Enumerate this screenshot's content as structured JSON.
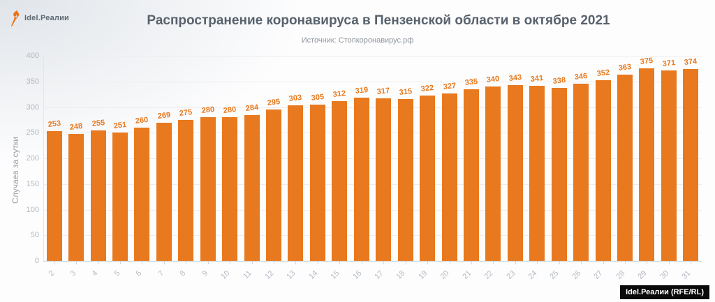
{
  "header": {
    "logo_text": "Idel.Реалии",
    "title": "Распространение коронавируса в Пензенской области в октябре 2021",
    "subtitle": "Источник: Стопкоронавирус.рф"
  },
  "chart_data": {
    "type": "bar",
    "title": "Распространение коронавируса в Пензенской области в октябре 2021",
    "subtitle": "Источник: Стопкоронавирус.рф",
    "xlabel": "",
    "ylabel": "Случаев за сутки",
    "categories": [
      "2",
      "3",
      "4",
      "5",
      "6",
      "7",
      "8",
      "9",
      "10",
      "11",
      "12",
      "13",
      "14",
      "15",
      "16",
      "17",
      "18",
      "19",
      "20",
      "21",
      "22",
      "23",
      "24",
      "25",
      "26",
      "27",
      "28",
      "29",
      "30",
      "31"
    ],
    "values": [
      253,
      248,
      255,
      251,
      260,
      269,
      275,
      280,
      280,
      284,
      295,
      303,
      305,
      312,
      319,
      317,
      315,
      322,
      327,
      335,
      340,
      343,
      341,
      338,
      346,
      352,
      363,
      375,
      371,
      374
    ],
    "ylim": [
      0,
      400
    ],
    "yticks": [
      0,
      50,
      100,
      150,
      200,
      250,
      300,
      350,
      400
    ],
    "grid": true,
    "legend": false,
    "bar_color": "#e8791e",
    "value_label_color": "#e8791e",
    "x_tick_rotation_deg": -45
  },
  "footer": {
    "badge": "Idel.Реалии (RFE/RL)"
  }
}
